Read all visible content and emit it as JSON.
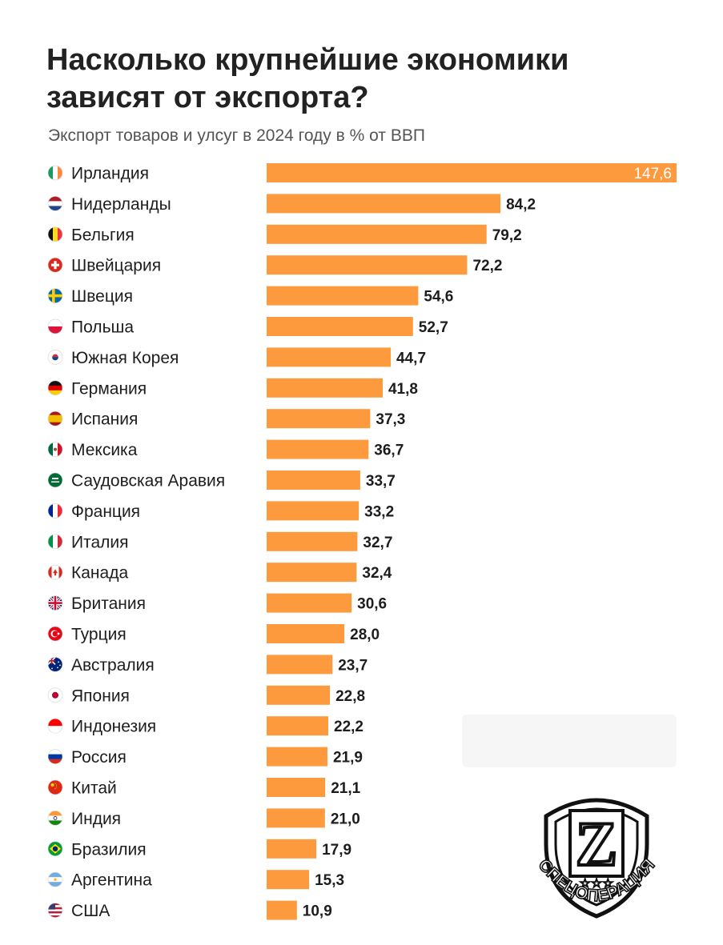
{
  "header": {
    "title": "Насколько крупнейшие экономики зависят от экспорта?",
    "subtitle": "Экспорт товаров и улсуг в 2024 году в % от ВВП"
  },
  "colors": {
    "bar": "#fd9a3e",
    "text": "#1d1d1f"
  },
  "chart_data": {
    "type": "bar",
    "orientation": "horizontal",
    "title": "Насколько крупнейшие экономики зависят от экспорта?",
    "subtitle": "Экспорт товаров и улсуг в 2024 году в % от ВВП",
    "xlim": [
      0,
      147.6
    ],
    "categories": [
      "Ирландия",
      "Нидерланды",
      "Бельгия",
      "Швейцария",
      "Швеция",
      "Польша",
      "Южная Корея",
      "Германия",
      "Испания",
      "Мексика",
      "Саудовская Аравия",
      "Франция",
      "Италия",
      "Канада",
      "Британия",
      "Турция",
      "Австралия",
      "Япония",
      "Индонезия",
      "Россия",
      "Китай",
      "Индия",
      "Бразилия",
      "Аргентина",
      "США"
    ],
    "values": [
      147.6,
      84.2,
      79.2,
      72.2,
      54.6,
      52.7,
      44.7,
      41.8,
      37.3,
      36.7,
      33.7,
      33.2,
      32.7,
      32.4,
      30.6,
      28.0,
      23.7,
      22.8,
      22.2,
      21.9,
      21.1,
      21.0,
      17.9,
      15.3,
      10.9
    ],
    "value_labels": [
      "147,6",
      "84,2",
      "79,2",
      "72,2",
      "54,6",
      "52,7",
      "44,7",
      "41,8",
      "37,3",
      "36,7",
      "33,7",
      "33,2",
      "32,7",
      "32,4",
      "30,6",
      "28,0",
      "23,7",
      "22,8",
      "22,2",
      "21,9",
      "21,1",
      "21,0",
      "17,9",
      "15,3",
      "10,9"
    ],
    "flags": [
      "flag-ireland-icon",
      "flag-netherlands-icon",
      "flag-belgium-icon",
      "flag-switzerland-icon",
      "flag-sweden-icon",
      "flag-poland-icon",
      "flag-south-korea-icon",
      "flag-germany-icon",
      "flag-spain-icon",
      "flag-mexico-icon",
      "flag-saudi-arabia-icon",
      "flag-france-icon",
      "flag-italy-icon",
      "flag-canada-icon",
      "flag-uk-icon",
      "flag-turkey-icon",
      "flag-australia-icon",
      "flag-japan-icon",
      "flag-indonesia-icon",
      "flag-russia-icon",
      "flag-china-icon",
      "flag-india-icon",
      "flag-brazil-icon",
      "flag-argentina-icon",
      "flag-usa-icon"
    ]
  },
  "watermark": {
    "letter": "Z",
    "text": "СПЕЦОПЕРАЦИЯ"
  }
}
